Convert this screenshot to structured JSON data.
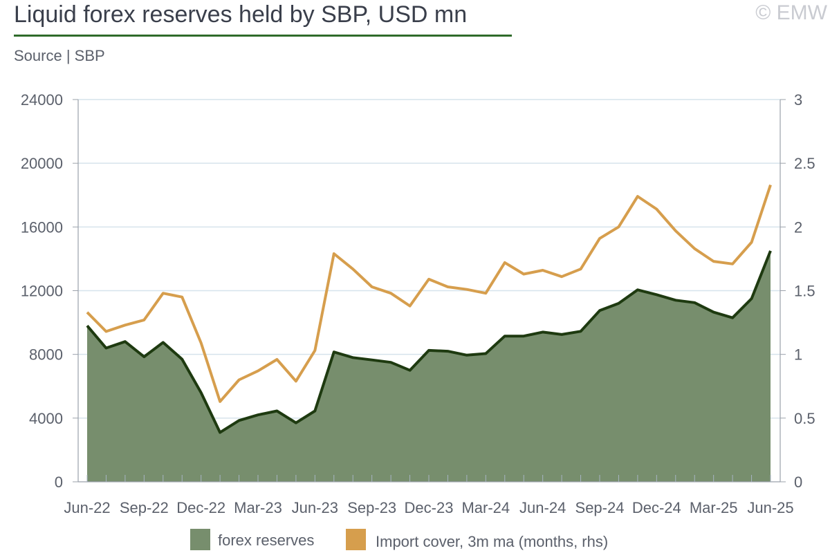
{
  "header": {
    "title": "Liquid forex reserves held by SBP, USD mn",
    "source": "Source | SBP",
    "copyright": "© EMW"
  },
  "chart_data": {
    "type": "area",
    "x": [
      "Jun-22",
      "Jul-22",
      "Aug-22",
      "Sep-22",
      "Oct-22",
      "Nov-22",
      "Dec-22",
      "Jan-23",
      "Feb-23",
      "Mar-23",
      "Apr-23",
      "May-23",
      "Jun-23",
      "Jul-23",
      "Aug-23",
      "Sep-23",
      "Oct-23",
      "Nov-23",
      "Dec-23",
      "Jan-24",
      "Feb-24",
      "Mar-24",
      "Apr-24",
      "May-24",
      "Jun-24",
      "Jul-24",
      "Aug-24",
      "Sep-24",
      "Oct-24",
      "Nov-24",
      "Dec-24",
      "Jan-25",
      "Feb-25",
      "Mar-25",
      "Apr-25",
      "May-25",
      "Jun-25"
    ],
    "x_tick_labels": [
      "Jun-22",
      "Sep-22",
      "Dec-22",
      "Mar-23",
      "Jun-23",
      "Sep-23",
      "Dec-23",
      "Mar-24",
      "Jun-24",
      "Sep-24",
      "Dec-24",
      "Mar-25",
      "Jun-25"
    ],
    "series": [
      {
        "name": "forex reserves",
        "type": "area",
        "axis": "left",
        "fill_color": "#778e6d",
        "line_color": "#1e3a10",
        "values": [
          9800,
          8400,
          8800,
          7850,
          8750,
          7700,
          5600,
          3100,
          3850,
          4200,
          4450,
          3700,
          4450,
          8150,
          7800,
          7650,
          7500,
          7000,
          8250,
          8200,
          7950,
          8050,
          9150,
          9150,
          9400,
          9250,
          9450,
          10750,
          11200,
          12050,
          11750,
          11400,
          11250,
          10650,
          10300,
          11500,
          14500
        ]
      },
      {
        "name": "Import cover, 3m ma (months, rhs)",
        "type": "line",
        "axis": "right",
        "line_color": "#d69e4d",
        "values": [
          1.33,
          1.18,
          1.23,
          1.27,
          1.48,
          1.45,
          1.09,
          0.63,
          0.8,
          0.87,
          0.96,
          0.79,
          1.03,
          1.79,
          1.67,
          1.53,
          1.48,
          1.38,
          1.59,
          1.53,
          1.51,
          1.48,
          1.72,
          1.63,
          1.66,
          1.61,
          1.67,
          1.91,
          2.0,
          2.24,
          2.14,
          1.97,
          1.83,
          1.73,
          1.71,
          1.88,
          2.33
        ]
      }
    ],
    "y_left": {
      "min": 0,
      "max": 24000,
      "ticks": [
        "0",
        "4000",
        "8000",
        "12000",
        "16000",
        "20000",
        "24000"
      ]
    },
    "y_right": {
      "min": 0,
      "max": 3,
      "ticks": [
        "0",
        "0.5",
        "1",
        "1.5",
        "2",
        "2.5",
        "3"
      ]
    },
    "grid": true,
    "legend_position": "bottom"
  }
}
